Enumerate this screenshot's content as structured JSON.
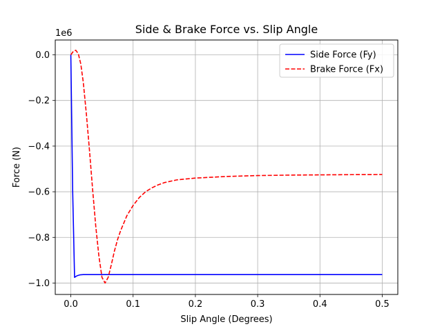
{
  "chart_data": {
    "type": "line",
    "title": "Side & Brake Force vs. Slip Angle",
    "xlabel": "Slip Angle (Degrees)",
    "ylabel": "Force (N)",
    "y_offset_text": "1e6",
    "y_scale_factor": 1000000,
    "xlim": [
      -0.025,
      0.525
    ],
    "ylim": [
      -1050000,
      65000
    ],
    "x_ticks": [
      0.0,
      0.1,
      0.2,
      0.3,
      0.4,
      0.5
    ],
    "x_tick_labels": [
      "0.0",
      "0.1",
      "0.2",
      "0.3",
      "0.4",
      "0.5"
    ],
    "y_ticks": [
      0,
      -200000,
      -400000,
      -600000,
      -800000,
      -1000000
    ],
    "y_tick_labels": [
      "0.0",
      "−0.2",
      "−0.4",
      "−0.6",
      "−0.8",
      "−1.0"
    ],
    "grid": true,
    "legend_position": "top-right",
    "series": [
      {
        "name": "Side Force (Fy)",
        "color": "#0000ff",
        "dash": "solid",
        "x": [
          0.0,
          0.003,
          0.006,
          0.01,
          0.015,
          0.02,
          0.05,
          0.1,
          0.2,
          0.3,
          0.4,
          0.5
        ],
        "y": [
          0,
          -600000,
          -975000,
          -968000,
          -964000,
          -963000,
          -963000,
          -963000,
          -963000,
          -963000,
          -963000,
          -963000
        ]
      },
      {
        "name": "Brake Force (Fx)",
        "color": "#ff0000",
        "dash": "dashed",
        "x": [
          0.0,
          0.004,
          0.008,
          0.012,
          0.016,
          0.02,
          0.025,
          0.03,
          0.035,
          0.04,
          0.045,
          0.05,
          0.055,
          0.06,
          0.065,
          0.07,
          0.075,
          0.08,
          0.09,
          0.1,
          0.11,
          0.12,
          0.13,
          0.14,
          0.15,
          0.17,
          0.2,
          0.25,
          0.3,
          0.35,
          0.4,
          0.45,
          0.5
        ],
        "y": [
          0,
          15000,
          20000,
          5000,
          -40000,
          -120000,
          -260000,
          -420000,
          -590000,
          -750000,
          -880000,
          -975000,
          -1000000,
          -975000,
          -920000,
          -860000,
          -810000,
          -770000,
          -705000,
          -660000,
          -625000,
          -600000,
          -583000,
          -570000,
          -560000,
          -548000,
          -540000,
          -533000,
          -529000,
          -527000,
          -526000,
          -525000,
          -524500
        ]
      }
    ]
  }
}
